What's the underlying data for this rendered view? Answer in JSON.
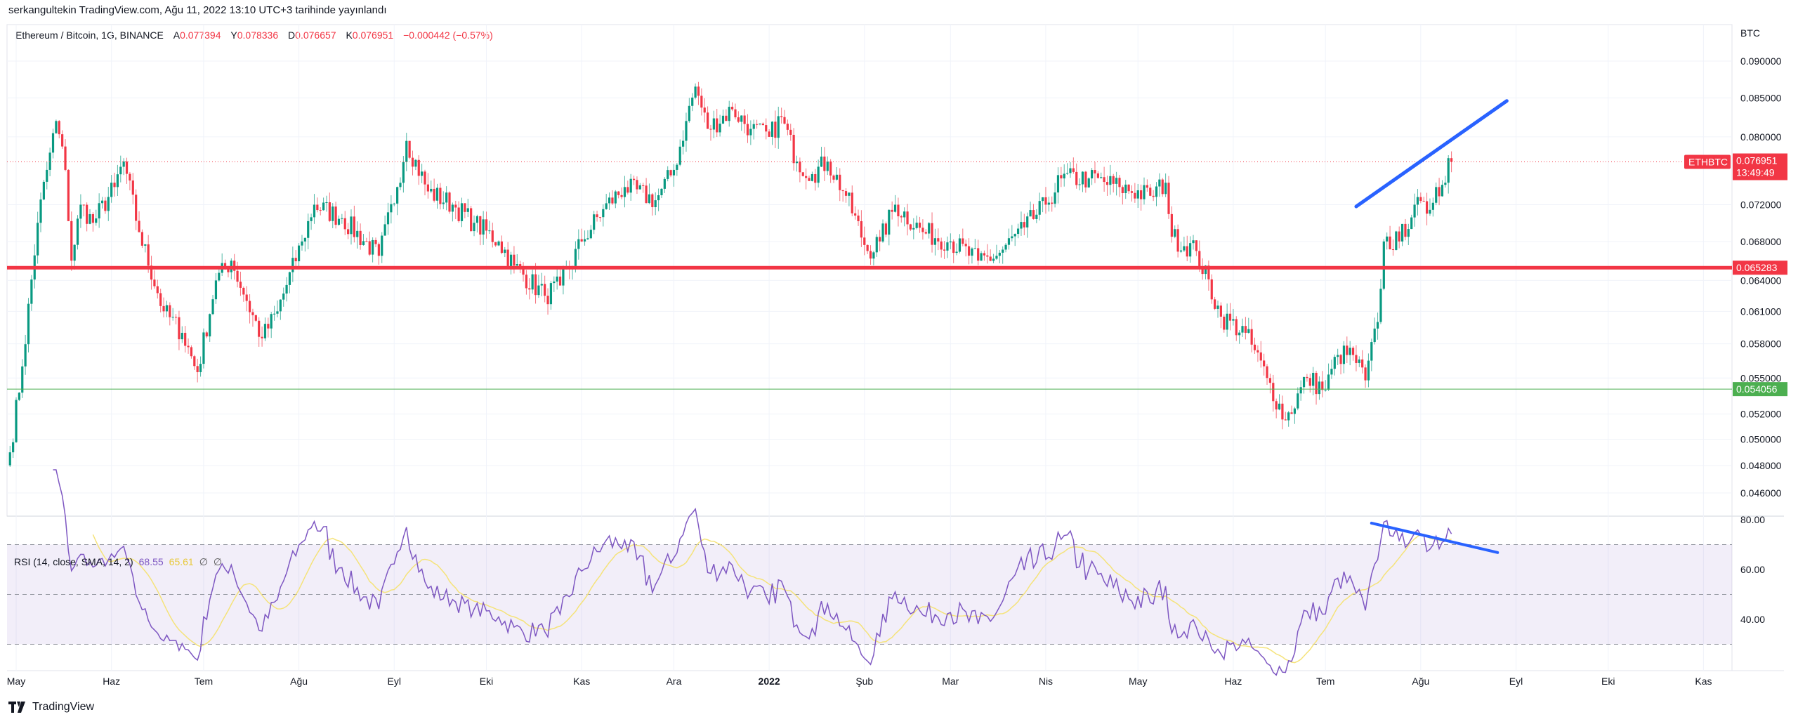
{
  "header": {
    "published": "serkangultekin TradingView.com, Ağu 11, 2022 13:10 UTC+3 tarihinde yayınlandı"
  },
  "legend": {
    "symbol": "Ethereum / Bitcoin, 1G, BINANCE",
    "open_label": "A",
    "open": "0.077394",
    "high_label": "Y",
    "high": "0.078336",
    "low_label": "D",
    "low": "0.076657",
    "close_label": "K",
    "close": "0.076951",
    "change": "−0.000442 (−0.57%)"
  },
  "rsi_legend": {
    "title": "RSI (14, close, SMA, 14, 2)",
    "rsi": "68.55",
    "sma": "65.61",
    "na1": "∅",
    "na2": "∅"
  },
  "footer": {
    "brand": "TradingView",
    "logo_icon": "tradingview-logo-icon"
  },
  "colors": {
    "up": "#089981",
    "down": "#f23645",
    "rsi": "#7e57c2",
    "rsi_ma": "#f5e37a",
    "trendline": "#2962ff",
    "resistance": "#f23645",
    "support": "#4caf50"
  },
  "chart_data": [
    {
      "type": "candlestick",
      "scale": "log",
      "unit_label": "BTC",
      "y_ticks": [
        "0.090000",
        "0.085000",
        "0.080000",
        "0.072000",
        "0.068000",
        "0.064000",
        "0.061000",
        "0.058000",
        "0.055000",
        "0.052000",
        "0.050000",
        "0.048000",
        "0.046000"
      ],
      "x_ticks": [
        {
          "date": "2021-05-01",
          "label": "May"
        },
        {
          "date": "2021-06-01",
          "label": "Haz"
        },
        {
          "date": "2021-07-01",
          "label": "Tem"
        },
        {
          "date": "2021-08-01",
          "label": "Ağu"
        },
        {
          "date": "2021-09-01",
          "label": "Eyl"
        },
        {
          "date": "2021-10-01",
          "label": "Eki"
        },
        {
          "date": "2021-11-01",
          "label": "Kas"
        },
        {
          "date": "2021-12-01",
          "label": "Ara"
        },
        {
          "date": "2022-01-01",
          "label": "2022"
        },
        {
          "date": "2022-02-01",
          "label": "Şub"
        },
        {
          "date": "2022-03-01",
          "label": "Mar"
        },
        {
          "date": "2022-04-01",
          "label": "Nis"
        },
        {
          "date": "2022-05-01",
          "label": "May"
        },
        {
          "date": "2022-06-01",
          "label": "Haz"
        },
        {
          "date": "2022-07-01",
          "label": "Tem"
        },
        {
          "date": "2022-08-01",
          "label": "Ağu"
        },
        {
          "date": "2022-09-01",
          "label": "Eyl"
        },
        {
          "date": "2022-10-01",
          "label": "Eki"
        },
        {
          "date": "2022-11-01",
          "label": "Kas"
        }
      ],
      "approx_closes": [
        [
          "2021-04-29",
          0.049
        ],
        [
          "2021-05-03",
          0.056
        ],
        [
          "2021-05-08",
          0.07
        ],
        [
          "2021-05-11",
          0.076
        ],
        [
          "2021-05-14",
          0.082
        ],
        [
          "2021-05-17",
          0.076
        ],
        [
          "2021-05-19",
          0.066
        ],
        [
          "2021-05-22",
          0.072
        ],
        [
          "2021-05-26",
          0.07
        ],
        [
          "2021-06-02",
          0.074
        ],
        [
          "2021-06-05",
          0.077
        ],
        [
          "2021-06-10",
          0.069
        ],
        [
          "2021-06-18",
          0.061
        ],
        [
          "2021-06-24",
          0.059
        ],
        [
          "2021-06-29",
          0.0555
        ],
        [
          "2021-07-05",
          0.064
        ],
        [
          "2021-07-10",
          0.066
        ],
        [
          "2021-07-15",
          0.062
        ],
        [
          "2021-07-20",
          0.0585
        ],
        [
          "2021-07-25",
          0.061
        ],
        [
          "2021-08-02",
          0.068
        ],
        [
          "2021-08-06",
          0.072
        ],
        [
          "2021-08-15",
          0.0705
        ],
        [
          "2021-08-27",
          0.0665
        ],
        [
          "2021-09-02",
          0.074
        ],
        [
          "2021-09-05",
          0.0795
        ],
        [
          "2021-09-12",
          0.0735
        ],
        [
          "2021-09-20",
          0.072
        ],
        [
          "2021-09-27",
          0.07
        ],
        [
          "2021-10-05",
          0.068
        ],
        [
          "2021-10-10",
          0.0655
        ],
        [
          "2021-10-20",
          0.0625
        ],
        [
          "2021-10-25",
          0.0635
        ],
        [
          "2021-11-01",
          0.068
        ],
        [
          "2021-11-08",
          0.0715
        ],
        [
          "2021-11-15",
          0.074
        ],
        [
          "2021-11-25",
          0.0725
        ],
        [
          "2021-12-01",
          0.076
        ],
        [
          "2021-12-05",
          0.082
        ],
        [
          "2021-12-08",
          0.0865
        ],
        [
          "2021-12-12",
          0.081
        ],
        [
          "2021-12-20",
          0.0835
        ],
        [
          "2021-12-26",
          0.081
        ],
        [
          "2022-01-01",
          0.08
        ],
        [
          "2022-01-05",
          0.0825
        ],
        [
          "2022-01-10",
          0.077
        ],
        [
          "2022-01-15",
          0.0755
        ],
        [
          "2022-01-20",
          0.077
        ],
        [
          "2022-01-26",
          0.073
        ],
        [
          "2022-02-02",
          0.067
        ],
        [
          "2022-02-06",
          0.068
        ],
        [
          "2022-02-11",
          0.072
        ],
        [
          "2022-02-20",
          0.069
        ],
        [
          "2022-03-01",
          0.068
        ],
        [
          "2022-03-10",
          0.066
        ],
        [
          "2022-03-16",
          0.0665
        ],
        [
          "2022-03-25",
          0.0695
        ],
        [
          "2022-04-01",
          0.072
        ],
        [
          "2022-04-06",
          0.075
        ],
        [
          "2022-04-15",
          0.075
        ],
        [
          "2022-04-25",
          0.074
        ],
        [
          "2022-05-05",
          0.073
        ],
        [
          "2022-05-10",
          0.0745
        ],
        [
          "2022-05-12",
          0.0685
        ],
        [
          "2022-05-20",
          0.067
        ],
        [
          "2022-05-28",
          0.0605
        ],
        [
          "2022-06-05",
          0.059
        ],
        [
          "2022-06-12",
          0.055
        ],
        [
          "2022-06-18",
          0.0515
        ],
        [
          "2022-06-25",
          0.055
        ],
        [
          "2022-07-01",
          0.054
        ],
        [
          "2022-07-05",
          0.057
        ],
        [
          "2022-07-10",
          0.057
        ],
        [
          "2022-07-14",
          0.0548
        ],
        [
          "2022-07-18",
          0.06
        ],
        [
          "2022-07-20",
          0.068
        ],
        [
          "2022-07-25",
          0.068
        ],
        [
          "2022-07-30",
          0.072
        ],
        [
          "2022-08-03",
          0.071
        ],
        [
          "2022-08-06",
          0.074
        ],
        [
          "2022-08-09",
          0.0745
        ],
        [
          "2022-08-10",
          0.0774
        ],
        [
          "2022-08-11",
          0.076951
        ]
      ],
      "last_price": {
        "label": "ETHBTC",
        "price": "0.076951",
        "countdown": "13:49:49"
      },
      "horizontal_lines": [
        {
          "price": "0.065283",
          "color": "#f23645",
          "style": "thick"
        },
        {
          "price": "0.054056",
          "color": "#4caf50",
          "style": "thin"
        }
      ],
      "trendline": {
        "from": [
          "2022-07-11",
          0.0718
        ],
        "to": [
          "2022-08-29",
          0.0846
        ]
      },
      "grid": true
    },
    {
      "type": "line",
      "name": "RSI (14, close, SMA, 14, 2)",
      "y_ticks": [
        "80.00",
        "60.00",
        "40.00"
      ],
      "bands": [
        70,
        50,
        30
      ],
      "ylim": [
        25,
        81
      ],
      "trendline": {
        "from": [
          "2022-07-16",
          78.6
        ],
        "to": [
          "2022-08-26",
          66.8
        ]
      }
    }
  ]
}
